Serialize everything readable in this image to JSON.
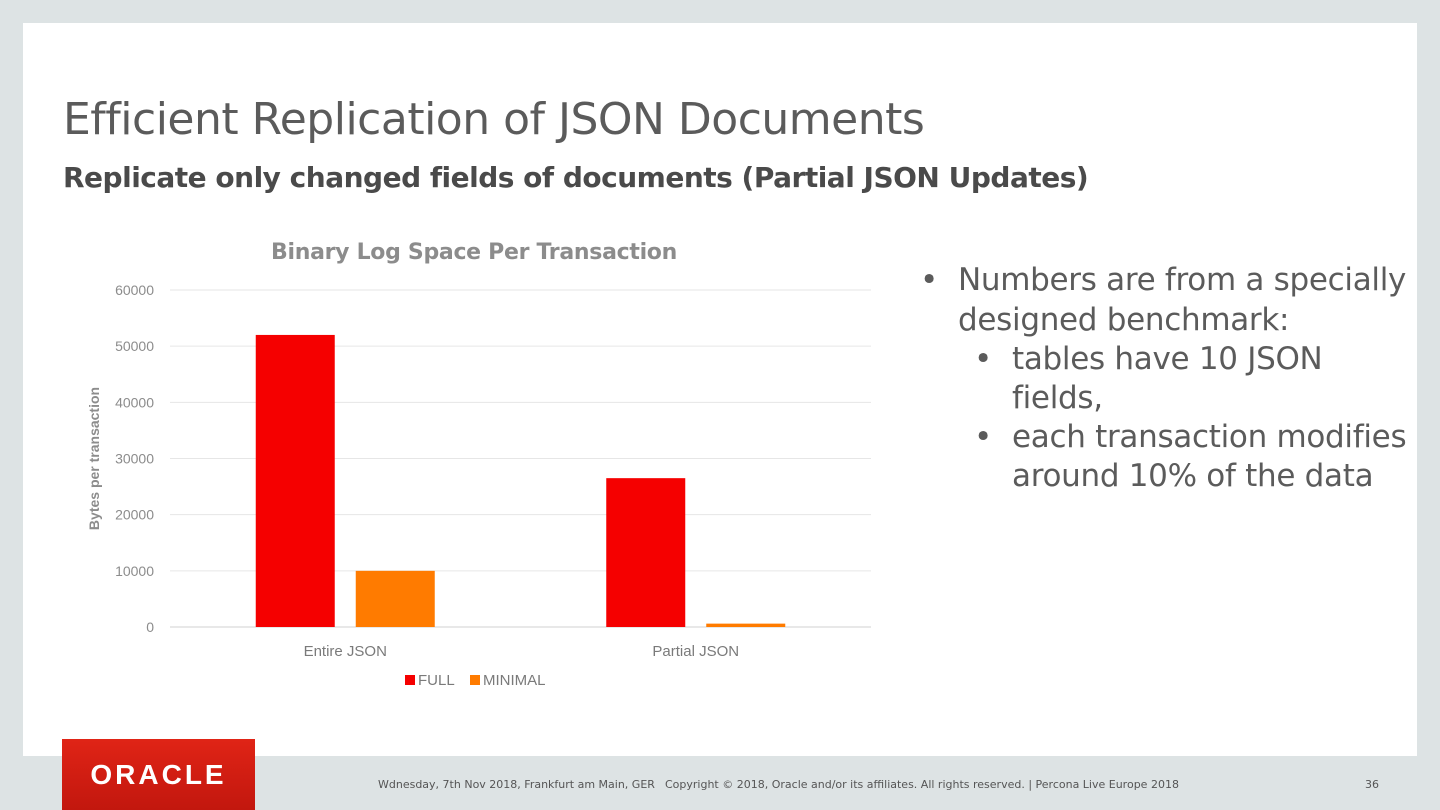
{
  "slide": {
    "title": "Efficient Replication of JSON Documents",
    "subtitle": "Replicate only changed fields of documents (Partial JSON Updates)"
  },
  "chart_data": {
    "type": "bar",
    "title": "Binary Log Space Per Transaction",
    "xlabel": "",
    "ylabel": "Bytes per transaction",
    "categories": [
      "Entire JSON",
      "Partial JSON"
    ],
    "series": [
      {
        "name": "FULL",
        "values": [
          52000,
          26500
        ],
        "color": "#f50000"
      },
      {
        "name": "MINIMAL",
        "values": [
          10000,
          600
        ],
        "color": "#ff7b00"
      }
    ],
    "ylim": [
      0,
      60000
    ],
    "yticks": [
      0,
      10000,
      20000,
      30000,
      40000,
      50000,
      60000
    ],
    "grid": true,
    "legend": "bottom"
  },
  "bullets": {
    "main": "Numbers are from a specially designed benchmark:",
    "sub": [
      "tables have 10 JSON fields,",
      "each transaction modifies around 10% of the data"
    ]
  },
  "footer": {
    "logo": "ORACLE",
    "date": "Wdnesday, 7th Nov 2018, Frankfurt am Main, GER",
    "copyright": "Copyright © 2018, Oracle and/or its affiliates. All rights reserved.  |  Percona Live Europe 2018",
    "page": "36"
  }
}
